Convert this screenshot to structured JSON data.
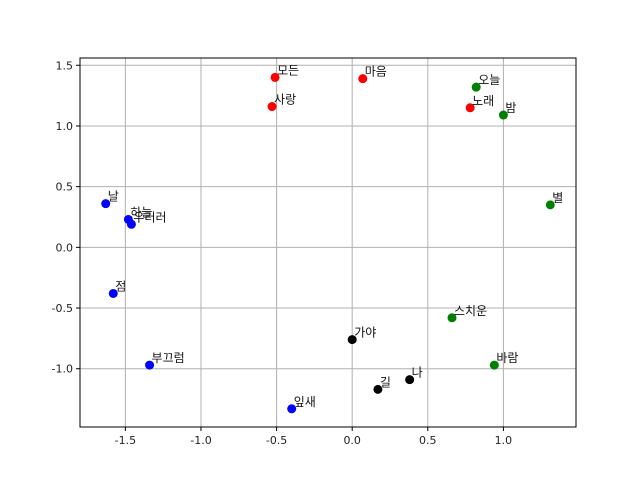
{
  "chart_data": {
    "type": "scatter",
    "title": "",
    "xlabel": "",
    "ylabel": "",
    "xlim": [
      -1.8,
      1.48
    ],
    "ylim": [
      -1.48,
      1.56
    ],
    "grid": true,
    "x_ticks": [
      {
        "value": -1.5,
        "label": "-1.5"
      },
      {
        "value": -1.0,
        "label": "-1.0"
      },
      {
        "value": -0.5,
        "label": "-0.5"
      },
      {
        "value": 0.0,
        "label": "0.0"
      },
      {
        "value": 0.5,
        "label": "0.5"
      },
      {
        "value": 1.0,
        "label": "1.0"
      }
    ],
    "y_ticks": [
      {
        "value": 1.5,
        "label": "1.5"
      },
      {
        "value": 1.0,
        "label": "1.0"
      },
      {
        "value": 0.5,
        "label": "0.5"
      },
      {
        "value": 0.0,
        "label": "0.0"
      },
      {
        "value": -0.5,
        "label": "-0.5"
      },
      {
        "value": -1.0,
        "label": "-1.0"
      }
    ],
    "colors": {
      "red": "#ff0000",
      "blue": "#0000ff",
      "green": "#008000",
      "black": "#000000"
    },
    "points": [
      {
        "label": "모든",
        "x": -0.51,
        "y": 1.4,
        "color": "red"
      },
      {
        "label": "사랑",
        "x": -0.53,
        "y": 1.16,
        "color": "red"
      },
      {
        "label": "마음",
        "x": 0.07,
        "y": 1.39,
        "color": "red"
      },
      {
        "label": "노래",
        "x": 0.78,
        "y": 1.15,
        "color": "red"
      },
      {
        "label": "오늘",
        "x": 0.82,
        "y": 1.32,
        "color": "green"
      },
      {
        "label": "밤",
        "x": 1.0,
        "y": 1.09,
        "color": "green"
      },
      {
        "label": "별",
        "x": 1.31,
        "y": 0.35,
        "color": "green"
      },
      {
        "label": "스치운",
        "x": 0.66,
        "y": -0.58,
        "color": "green"
      },
      {
        "label": "바람",
        "x": 0.94,
        "y": -0.97,
        "color": "green"
      },
      {
        "label": "날",
        "x": -1.63,
        "y": 0.36,
        "color": "blue"
      },
      {
        "label": "하늘",
        "x": -1.48,
        "y": 0.23,
        "color": "blue"
      },
      {
        "label": "우러러",
        "x": -1.46,
        "y": 0.19,
        "color": "blue"
      },
      {
        "label": "점",
        "x": -1.58,
        "y": -0.38,
        "color": "blue"
      },
      {
        "label": "부끄럼",
        "x": -1.34,
        "y": -0.97,
        "color": "blue"
      },
      {
        "label": "잎새",
        "x": -0.4,
        "y": -1.33,
        "color": "blue"
      },
      {
        "label": "가야",
        "x": 0.0,
        "y": -0.76,
        "color": "black"
      },
      {
        "label": "나",
        "x": 0.38,
        "y": -1.09,
        "color": "black"
      },
      {
        "label": "길",
        "x": 0.17,
        "y": -1.17,
        "color": "black"
      }
    ]
  }
}
